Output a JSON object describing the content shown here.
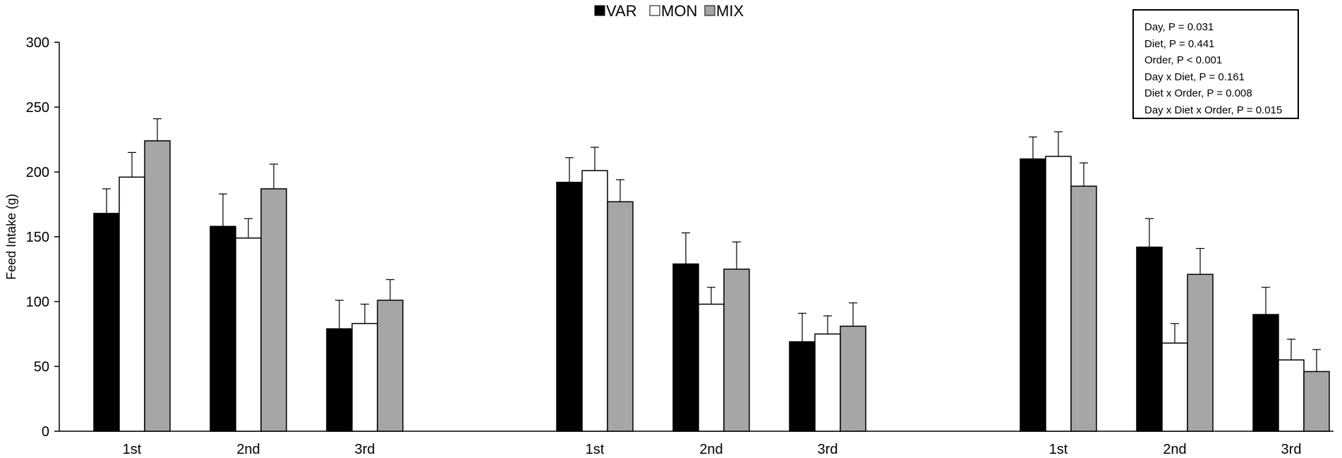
{
  "chart_data": {
    "type": "bar",
    "ylabel": "Feed Intake (g)",
    "xlabel": "",
    "ylim": [
      0,
      300
    ],
    "yticks": [
      0,
      50,
      100,
      150,
      200,
      250,
      300
    ],
    "grid": false,
    "legend_position": "top-center",
    "legend": [
      {
        "name": "VAR",
        "color": "#000000"
      },
      {
        "name": "MON",
        "color": "#ffffff"
      },
      {
        "name": "MIX",
        "color": "#a6a6a6"
      }
    ],
    "categories": [
      "1st",
      "2nd",
      "3rd",
      "1st",
      "2nd",
      "3rd",
      "1st",
      "2nd",
      "3rd"
    ],
    "series": [
      {
        "name": "VAR",
        "color": "#000000",
        "values": [
          168,
          158,
          79,
          192,
          129,
          69,
          210,
          142,
          90
        ],
        "errors": [
          19,
          25,
          22,
          19,
          24,
          22,
          17,
          22,
          21
        ]
      },
      {
        "name": "MON",
        "color": "#ffffff",
        "values": [
          196,
          149,
          83,
          201,
          98,
          75,
          212,
          68,
          55
        ],
        "errors": [
          19,
          15,
          15,
          18,
          13,
          14,
          19,
          15,
          16
        ]
      },
      {
        "name": "MIX",
        "color": "#a6a6a6",
        "values": [
          224,
          187,
          101,
          177,
          125,
          81,
          189,
          121,
          46
        ],
        "errors": [
          17,
          19,
          16,
          17,
          21,
          18,
          18,
          20,
          17
        ]
      }
    ],
    "annotation_lines": [
      "Day, P = 0.031",
      "Diet, P = 0.441",
      "Order, P < 0.001",
      "Day x Diet, P = 0.161",
      "Diet x Order, P = 0.008",
      "Day x Diet x Order, P = 0.015"
    ]
  }
}
